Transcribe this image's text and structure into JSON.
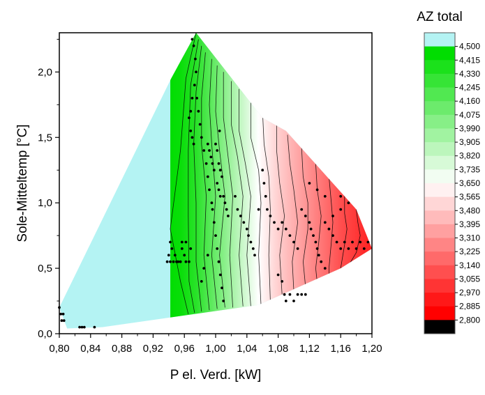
{
  "chart_data": {
    "type": "heatmap",
    "subtype": "filled-contour-with-scatter",
    "title": "",
    "xlabel": "P el. Verd. [kW]",
    "ylabel": "Sole-Mitteltemp [°C]",
    "xlim": [
      0.8,
      1.2
    ],
    "ylim": [
      0.0,
      2.3
    ],
    "x_ticks": [
      "0,80",
      "0,84",
      "0,88",
      "0,92",
      "0,96",
      "1,00",
      "1,04",
      "1,08",
      "1,12",
      "1,16",
      "1,20"
    ],
    "y_ticks": [
      "0,0",
      "0,5",
      "1,0",
      "1,5",
      "2,0"
    ],
    "colorbar": {
      "title": "AZ total",
      "levels": [
        "4,500",
        "4,415",
        "4,330",
        "4,245",
        "4,160",
        "4,075",
        "3,990",
        "3,905",
        "3,820",
        "3,735",
        "3,650",
        "3,565",
        "3,480",
        "3,395",
        "3,310",
        "3,225",
        "3,140",
        "3,055",
        "2,970",
        "2,885",
        "2,800"
      ],
      "top_color": "#b4f3f3",
      "high_color": "#00dd00",
      "mid_color": "#ffffff",
      "low_color": "#ff0000",
      "bottom_color": "#000000"
    },
    "region_boundary": [
      [
        0.8,
        0.2
      ],
      [
        0.943,
        1.95
      ],
      [
        0.975,
        2.3
      ],
      [
        1.06,
        1.65
      ],
      [
        1.09,
        1.55
      ],
      [
        1.18,
        0.95
      ],
      [
        1.2,
        0.65
      ],
      [
        1.16,
        0.5
      ],
      [
        1.055,
        0.22
      ],
      [
        0.855,
        0.05
      ],
      [
        0.81,
        0.04
      ]
    ],
    "contours": [
      {
        "az": 4.45,
        "points": [
          [
            0.975,
            2.3
          ],
          [
            0.962,
            1.95
          ],
          [
            0.955,
            1.4
          ],
          [
            0.942,
            0.8
          ],
          [
            0.955,
            0.4
          ],
          [
            0.965,
            0.15
          ]
        ]
      },
      {
        "az": 4.38,
        "points": [
          [
            0.978,
            2.25
          ],
          [
            0.968,
            1.9
          ],
          [
            0.965,
            1.4
          ],
          [
            0.965,
            0.9
          ],
          [
            0.966,
            0.4
          ],
          [
            0.973,
            0.16
          ]
        ]
      },
      {
        "az": 4.3,
        "points": [
          [
            0.982,
            2.2
          ],
          [
            0.975,
            1.85
          ],
          [
            0.972,
            1.45
          ],
          [
            0.975,
            1.0
          ],
          [
            0.975,
            0.55
          ],
          [
            0.982,
            0.17
          ]
        ]
      },
      {
        "az": 4.22,
        "points": [
          [
            0.987,
            2.15
          ],
          [
            0.982,
            1.8
          ],
          [
            0.982,
            1.45
          ],
          [
            0.988,
            1.05
          ],
          [
            0.985,
            0.6
          ],
          [
            0.992,
            0.18
          ]
        ]
      },
      {
        "az": 4.13,
        "points": [
          [
            0.995,
            2.1
          ],
          [
            0.992,
            1.75
          ],
          [
            0.995,
            1.45
          ],
          [
            1.0,
            1.05
          ],
          [
            0.995,
            0.6
          ],
          [
            1.002,
            0.19
          ]
        ]
      },
      {
        "az": 4.05,
        "points": [
          [
            1.002,
            2.05
          ],
          [
            1.0,
            1.7
          ],
          [
            1.005,
            1.4
          ],
          [
            1.012,
            1.05
          ],
          [
            1.005,
            0.6
          ],
          [
            1.012,
            0.2
          ]
        ]
      },
      {
        "az": 3.96,
        "points": [
          [
            1.01,
            2.0
          ],
          [
            1.01,
            1.65
          ],
          [
            1.015,
            1.4
          ],
          [
            1.022,
            1.05
          ],
          [
            1.018,
            0.6
          ],
          [
            1.022,
            0.2
          ]
        ]
      },
      {
        "az": 3.88,
        "points": [
          [
            1.02,
            1.93
          ],
          [
            1.02,
            1.6
          ],
          [
            1.028,
            1.35
          ],
          [
            1.035,
            1.05
          ],
          [
            1.03,
            0.6
          ],
          [
            1.035,
            0.21
          ]
        ]
      },
      {
        "az": 3.79,
        "points": [
          [
            1.03,
            1.87
          ],
          [
            1.03,
            1.55
          ],
          [
            1.038,
            1.3
          ],
          [
            1.045,
            1.05
          ],
          [
            1.04,
            0.6
          ],
          [
            1.045,
            0.21
          ]
        ]
      },
      {
        "az": 3.7,
        "points": [
          [
            1.045,
            1.78
          ],
          [
            1.045,
            1.5
          ],
          [
            1.055,
            1.25
          ],
          [
            1.058,
            1.0
          ],
          [
            1.055,
            0.6
          ],
          [
            1.058,
            0.22
          ]
        ]
      },
      {
        "az": 3.61,
        "points": [
          [
            1.06,
            1.7
          ],
          [
            1.062,
            1.45
          ],
          [
            1.068,
            1.2
          ],
          [
            1.07,
            0.95
          ],
          [
            1.068,
            0.6
          ],
          [
            1.07,
            0.25
          ]
        ]
      },
      {
        "az": 3.52,
        "points": [
          [
            1.078,
            1.6
          ],
          [
            1.078,
            1.4
          ],
          [
            1.082,
            1.15
          ],
          [
            1.088,
            0.9
          ],
          [
            1.082,
            0.6
          ],
          [
            1.085,
            0.3
          ]
        ]
      },
      {
        "az": 3.44,
        "points": [
          [
            1.092,
            1.52
          ],
          [
            1.095,
            1.3
          ],
          [
            1.1,
            1.1
          ],
          [
            1.105,
            0.85
          ],
          [
            1.098,
            0.55
          ],
          [
            1.1,
            0.33
          ]
        ]
      },
      {
        "az": 3.35,
        "points": [
          [
            1.11,
            1.42
          ],
          [
            1.112,
            1.2
          ],
          [
            1.118,
            1.0
          ],
          [
            1.118,
            0.8
          ],
          [
            1.112,
            0.55
          ],
          [
            1.115,
            0.36
          ]
        ]
      },
      {
        "az": 3.27,
        "points": [
          [
            1.128,
            1.3
          ],
          [
            1.13,
            1.1
          ],
          [
            1.135,
            0.9
          ],
          [
            1.132,
            0.7
          ],
          [
            1.128,
            0.5
          ],
          [
            1.13,
            0.39
          ]
        ]
      },
      {
        "az": 3.18,
        "points": [
          [
            1.145,
            1.2
          ],
          [
            1.148,
            1.0
          ],
          [
            1.15,
            0.85
          ],
          [
            1.148,
            0.7
          ],
          [
            1.145,
            0.5
          ],
          [
            1.145,
            0.42
          ]
        ]
      },
      {
        "az": 3.1,
        "points": [
          [
            1.165,
            1.08
          ],
          [
            1.165,
            0.92
          ],
          [
            1.168,
            0.8
          ],
          [
            1.165,
            0.68
          ],
          [
            1.16,
            0.5
          ]
        ]
      },
      {
        "az": 3.01,
        "points": [
          [
            1.18,
            0.95
          ],
          [
            1.182,
            0.85
          ],
          [
            1.185,
            0.75
          ],
          [
            1.18,
            0.62
          ],
          [
            1.172,
            0.54
          ]
        ]
      }
    ],
    "series": [
      {
        "points": [
          [
            0.8,
            0.2
          ],
          [
            0.802,
            0.15
          ],
          [
            0.803,
            0.1
          ],
          [
            0.806,
            0.1
          ],
          [
            0.805,
            0.15
          ],
          [
            0.826,
            0.05
          ],
          [
            0.829,
            0.05
          ],
          [
            0.832,
            0.05
          ],
          [
            0.845,
            0.05
          ],
          [
            0.938,
            0.55
          ],
          [
            0.94,
            0.6
          ],
          [
            0.942,
            0.55
          ],
          [
            0.942,
            0.7
          ],
          [
            0.944,
            0.65
          ],
          [
            0.946,
            0.55
          ],
          [
            0.948,
            0.6
          ],
          [
            0.95,
            0.55
          ],
          [
            0.952,
            0.55
          ],
          [
            0.955,
            0.55
          ],
          [
            0.957,
            0.65
          ],
          [
            0.957,
            0.7
          ],
          [
            0.96,
            0.6
          ],
          [
            0.962,
            0.55
          ],
          [
            0.962,
            0.7
          ],
          [
            0.966,
            0.55
          ],
          [
            0.968,
            0.65
          ],
          [
            0.97,
            2.25
          ],
          [
            0.972,
            2.2
          ],
          [
            0.974,
            2.1
          ],
          [
            0.975,
            2.0
          ],
          [
            0.973,
            1.9
          ],
          [
            0.97,
            1.8
          ],
          [
            0.968,
            1.7
          ],
          [
            0.966,
            1.65
          ],
          [
            0.968,
            1.55
          ],
          [
            0.97,
            1.5
          ],
          [
            0.972,
            1.45
          ],
          [
            0.976,
            1.8
          ],
          [
            0.978,
            1.7
          ],
          [
            0.98,
            1.6
          ],
          [
            0.982,
            1.5
          ],
          [
            0.985,
            1.4
          ],
          [
            0.988,
            1.3
          ],
          [
            0.99,
            1.2
          ],
          [
            0.992,
            1.1
          ],
          [
            0.995,
            1.0
          ],
          [
            0.99,
            1.45
          ],
          [
            0.992,
            1.4
          ],
          [
            0.994,
            1.35
          ],
          [
            0.996,
            1.3
          ],
          [
            0.998,
            1.25
          ],
          [
            1.0,
            1.45
          ],
          [
            1.002,
            1.4
          ],
          [
            1.004,
            1.3
          ],
          [
            1.006,
            1.25
          ],
          [
            1.008,
            1.2
          ],
          [
            1.002,
            1.15
          ],
          [
            1.004,
            1.1
          ],
          [
            1.006,
            1.05
          ],
          [
            1.01,
            1.05
          ],
          [
            1.012,
            1.0
          ],
          [
            1.014,
            0.95
          ],
          [
            1.016,
            0.9
          ],
          [
            1.005,
            1.55
          ],
          [
            0.996,
            0.95
          ],
          [
            0.998,
            0.85
          ],
          [
            1.0,
            0.75
          ],
          [
            1.002,
            0.65
          ],
          [
            1.004,
            0.55
          ],
          [
            1.006,
            0.45
          ],
          [
            1.008,
            0.35
          ],
          [
            1.01,
            0.25
          ],
          [
            0.99,
            0.6
          ],
          [
            0.985,
            0.5
          ],
          [
            0.982,
            0.4
          ],
          [
            1.025,
            1.05
          ],
          [
            1.028,
            0.95
          ],
          [
            1.032,
            0.9
          ],
          [
            1.036,
            0.85
          ],
          [
            1.04,
            0.8
          ],
          [
            1.042,
            0.75
          ],
          [
            1.045,
            0.7
          ],
          [
            1.048,
            0.65
          ],
          [
            1.05,
            0.6
          ],
          [
            1.055,
            0.95
          ],
          [
            1.06,
            1.25
          ],
          [
            1.062,
            1.15
          ],
          [
            1.064,
            1.05
          ],
          [
            1.066,
            0.95
          ],
          [
            1.07,
            0.9
          ],
          [
            1.075,
            0.85
          ],
          [
            1.08,
            0.8
          ],
          [
            1.085,
            0.85
          ],
          [
            1.09,
            0.8
          ],
          [
            1.095,
            0.75
          ],
          [
            1.1,
            0.7
          ],
          [
            1.105,
            0.65
          ],
          [
            1.08,
            0.45
          ],
          [
            1.085,
            0.4
          ],
          [
            1.088,
            0.3
          ],
          [
            1.09,
            0.25
          ],
          [
            1.095,
            0.3
          ],
          [
            1.1,
            0.25
          ],
          [
            1.105,
            0.3
          ],
          [
            1.11,
            0.3
          ],
          [
            1.115,
            0.3
          ],
          [
            1.11,
            0.95
          ],
          [
            1.115,
            0.9
          ],
          [
            1.12,
            0.85
          ],
          [
            1.122,
            0.8
          ],
          [
            1.125,
            0.75
          ],
          [
            1.128,
            0.7
          ],
          [
            1.13,
            0.65
          ],
          [
            1.132,
            0.6
          ],
          [
            1.135,
            0.55
          ],
          [
            1.14,
            0.5
          ],
          [
            1.14,
            0.85
          ],
          [
            1.145,
            0.8
          ],
          [
            1.15,
            0.75
          ],
          [
            1.155,
            0.7
          ],
          [
            1.16,
            0.65
          ],
          [
            1.165,
            0.7
          ],
          [
            1.17,
            0.65
          ],
          [
            1.175,
            0.7
          ],
          [
            1.18,
            0.65
          ],
          [
            1.185,
            0.7
          ],
          [
            1.19,
            0.65
          ],
          [
            1.195,
            0.7
          ],
          [
            1.15,
            0.9
          ],
          [
            1.16,
            0.95
          ],
          [
            1.17,
            1.0
          ],
          [
            1.16,
            1.05
          ],
          [
            1.14,
            1.05
          ],
          [
            1.13,
            1.1
          ],
          [
            1.12,
            1.15
          ]
        ]
      }
    ]
  }
}
